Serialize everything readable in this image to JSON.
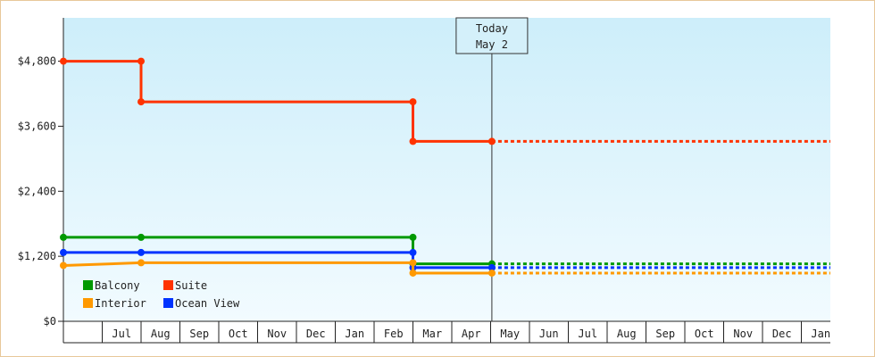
{
  "chart_data": {
    "type": "line",
    "step": true,
    "y_ticks": [
      "$0",
      "$1,200",
      "$2,400",
      "$3,600",
      "$4,800"
    ],
    "y_tick_values": [
      0,
      1200,
      2400,
      3600,
      4800
    ],
    "ylim": [
      0,
      5600
    ],
    "x_start": "2025-06",
    "x_end": "2027-01",
    "months": [
      "Jul",
      "Aug",
      "Sep",
      "Oct",
      "Nov",
      "Dec",
      "Jan",
      "Feb",
      "Mar",
      "Apr",
      "May",
      "Jun",
      "Jul",
      "Aug",
      "Sep",
      "Oct",
      "Nov",
      "Dec",
      "Jan"
    ],
    "today": {
      "line1": "Today",
      "line2": "May 2",
      "date": "2026-05-02"
    },
    "series": [
      {
        "name": "Suite",
        "color": "#ff3300",
        "points": [
          [
            "2025-06-01",
            4800
          ],
          [
            "2025-08-01",
            4800
          ],
          [
            "2025-08-01",
            4050
          ],
          [
            "2026-03-01",
            4050
          ],
          [
            "2026-03-01",
            3320
          ],
          [
            "2026-05-02",
            3320
          ]
        ],
        "projection": 3320
      },
      {
        "name": "Balcony",
        "color": "#009900",
        "points": [
          [
            "2025-06-01",
            1550
          ],
          [
            "2025-08-01",
            1550
          ],
          [
            "2026-03-01",
            1550
          ],
          [
            "2026-03-01",
            1060
          ],
          [
            "2026-05-02",
            1060
          ]
        ],
        "projection": 1060
      },
      {
        "name": "Ocean View",
        "color": "#0033ff",
        "points": [
          [
            "2025-06-01",
            1270
          ],
          [
            "2025-08-01",
            1270
          ],
          [
            "2026-03-01",
            1270
          ],
          [
            "2026-03-01",
            990
          ],
          [
            "2026-05-02",
            990
          ]
        ],
        "projection": 990
      },
      {
        "name": "Interior",
        "color": "#ff9900",
        "points": [
          [
            "2025-06-01",
            1030
          ],
          [
            "2025-08-01",
            1080
          ],
          [
            "2026-03-01",
            1080
          ],
          [
            "2026-03-01",
            890
          ],
          [
            "2026-05-02",
            890
          ]
        ],
        "projection": 890
      }
    ],
    "legend": [
      {
        "name": "Balcony",
        "color": "#009900"
      },
      {
        "name": "Suite",
        "color": "#ff3300"
      },
      {
        "name": "Interior",
        "color": "#ff9900"
      },
      {
        "name": "Ocean View",
        "color": "#0033ff"
      }
    ],
    "legend_position": "bottom-left",
    "grid": false
  }
}
